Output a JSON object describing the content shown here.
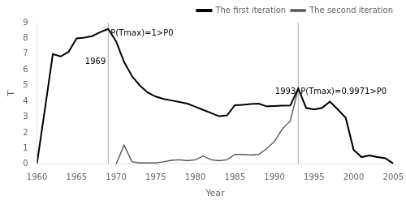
{
  "chart_data": {
    "type": "line",
    "xlabel": "Year",
    "ylabel": "T",
    "xlim": [
      1960,
      2005
    ],
    "ylim": [
      0,
      9
    ],
    "xticks": [
      1960,
      1965,
      1970,
      1975,
      1980,
      1985,
      1990,
      1995,
      2000,
      2005
    ],
    "yticks": [
      0,
      1,
      2,
      3,
      4,
      5,
      6,
      7,
      8,
      9
    ],
    "grid": false,
    "legend": "upper right",
    "series": [
      {
        "name": "The first iteration",
        "color": "#000000",
        "x": [
          1960,
          1961,
          1962,
          1963,
          1964,
          1965,
          1966,
          1967,
          1968,
          1969,
          1970,
          1971,
          1972,
          1973,
          1974,
          1975,
          1976,
          1977,
          1978,
          1979,
          1980,
          1981,
          1982,
          1983,
          1984,
          1985,
          1986,
          1987,
          1988,
          1989,
          1990,
          1991,
          1992,
          1993,
          1994,
          1995,
          1996,
          1997,
          1998,
          1999,
          2000,
          2001,
          2002,
          2003,
          2004,
          2005
        ],
        "values": [
          0.05,
          3.5,
          7.0,
          6.85,
          7.15,
          8.0,
          8.05,
          8.15,
          8.4,
          8.6,
          7.8,
          6.5,
          5.6,
          5.0,
          4.55,
          4.3,
          4.15,
          4.05,
          3.95,
          3.85,
          3.65,
          3.45,
          3.25,
          3.05,
          3.1,
          3.75,
          3.78,
          3.82,
          3.85,
          3.68,
          3.7,
          3.72,
          3.73,
          4.82,
          3.58,
          3.48,
          3.58,
          3.98,
          3.48,
          2.95,
          0.9,
          0.45,
          0.55,
          0.45,
          0.38,
          0.05
        ]
      },
      {
        "name": "The second iteration",
        "color": "#555555",
        "x": [
          1970,
          1971,
          1972,
          1973,
          1974,
          1975,
          1976,
          1977,
          1978,
          1979,
          1980,
          1981,
          1982,
          1983,
          1984,
          1985,
          1986,
          1987,
          1988,
          1989,
          1990,
          1991,
          1992,
          1993,
          1994,
          1995,
          1996,
          1997,
          1998,
          1999,
          2000,
          2001,
          2002,
          2003,
          2004,
          2005
        ],
        "values": [
          0.02,
          1.22,
          0.15,
          0.08,
          0.08,
          0.08,
          0.15,
          0.25,
          0.28,
          0.22,
          0.28,
          0.52,
          0.28,
          0.22,
          0.28,
          0.62,
          0.62,
          0.58,
          0.62,
          0.98,
          1.45,
          2.25,
          2.75,
          4.82,
          3.58,
          3.48,
          3.58,
          3.98,
          3.48,
          2.95,
          0.9,
          0.45,
          0.55,
          0.45,
          0.38,
          0.05
        ]
      }
    ],
    "vlines": [
      {
        "x": 1969,
        "label": "1969",
        "label_y": 6.5,
        "color": "#aaaaaa"
      },
      {
        "x": 1993,
        "label": "1993",
        "label_y": 4.6,
        "color": "#aaaaaa"
      }
    ],
    "annotations": [
      {
        "text": "P(Tmax)=1>P0",
        "x": 1969,
        "y": 8.3
      },
      {
        "text": "P(Tmax)=0.9971>P0",
        "x": 1993,
        "y": 4.6
      }
    ]
  }
}
